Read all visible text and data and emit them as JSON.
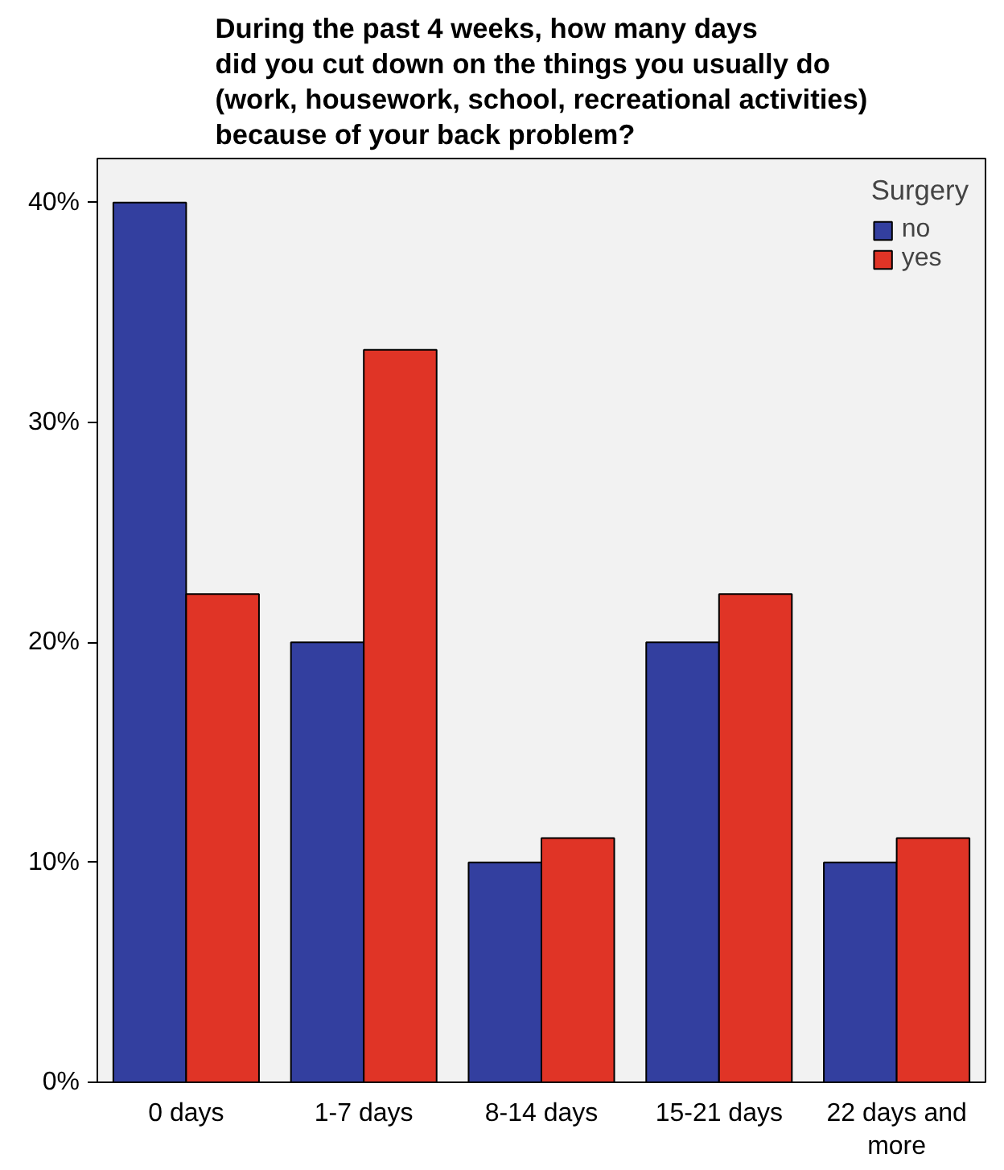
{
  "chart_data": {
    "type": "bar",
    "title": "During the past 4 weeks, how many days\ndid you cut down on the things you usually do\n(work, housework, school, recreational activities)\nbecause of your back problem?",
    "categories": [
      "0 days",
      "1-7 days",
      "8-14 days",
      "15-21 days",
      "22 days and\nmore"
    ],
    "series": [
      {
        "name": "no",
        "color": "#333f9f",
        "values": [
          40,
          20,
          10,
          20,
          10
        ]
      },
      {
        "name": "yes",
        "color": "#e03426",
        "values": [
          22.2,
          33.3,
          11.1,
          22.2,
          11.1
        ]
      }
    ],
    "legend_title": "Surgery",
    "legend": "top right",
    "grid": false,
    "ylim": [
      0,
      42
    ],
    "yticks": [
      {
        "value": 0,
        "label": "0%"
      },
      {
        "value": 10,
        "label": "10%"
      },
      {
        "value": 20,
        "label": "20%"
      },
      {
        "value": 30,
        "label": "30%"
      },
      {
        "value": 40,
        "label": "40%"
      }
    ]
  }
}
